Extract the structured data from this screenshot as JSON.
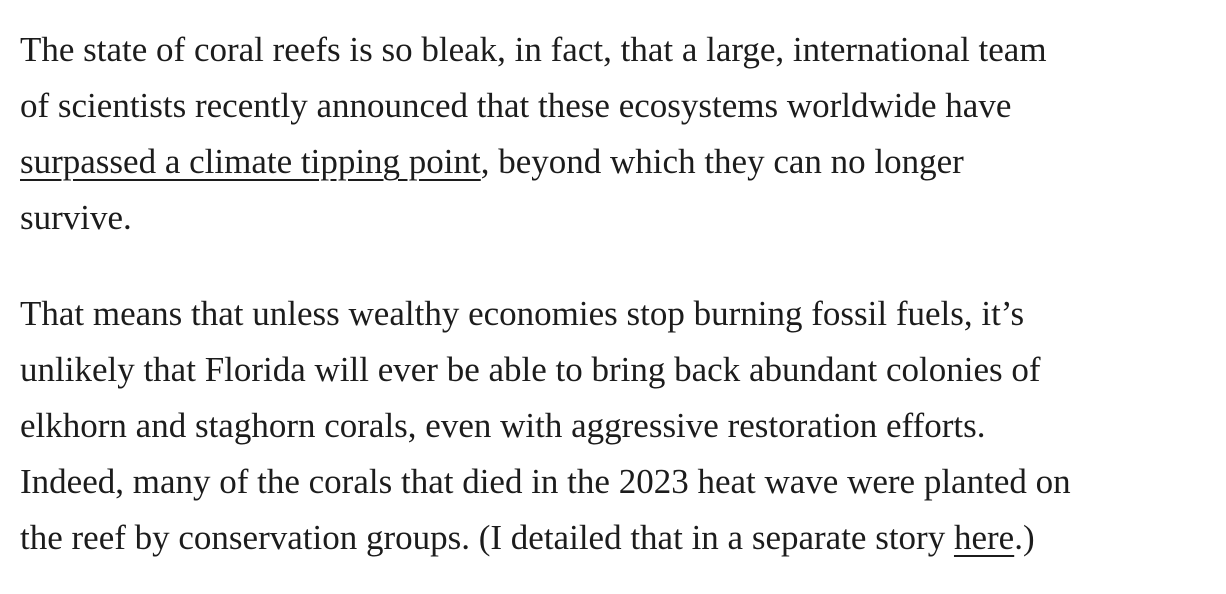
{
  "paragraphs": [
    {
      "lines": [
        [
          {
            "text": "The state of coral reefs is so bleak, in fact, that a large, international team"
          }
        ],
        [
          {
            "text": "of scientists recently announced that these ecosystems worldwide have"
          }
        ],
        [
          {
            "link": "surpassed a climate tipping point"
          },
          {
            "text": ", beyond which they can no longer"
          }
        ],
        [
          {
            "text": "survive."
          }
        ]
      ]
    },
    {
      "lines": [
        [
          {
            "text": "That means that unless wealthy economies stop burning fossil fuels, it’s"
          }
        ],
        [
          {
            "text": "unlikely that Florida will ever be able to bring back abundant colonies of"
          }
        ],
        [
          {
            "text": "elkhorn and staghorn corals, even with aggressive restoration efforts."
          }
        ],
        [
          {
            "text": "Indeed, many of the corals that died in the 2023 heat wave were planted on"
          }
        ],
        [
          {
            "text": "the reef by conservation groups. (I detailed that in a separate story "
          },
          {
            "link": "here"
          },
          {
            "text": ".)"
          }
        ]
      ]
    }
  ]
}
